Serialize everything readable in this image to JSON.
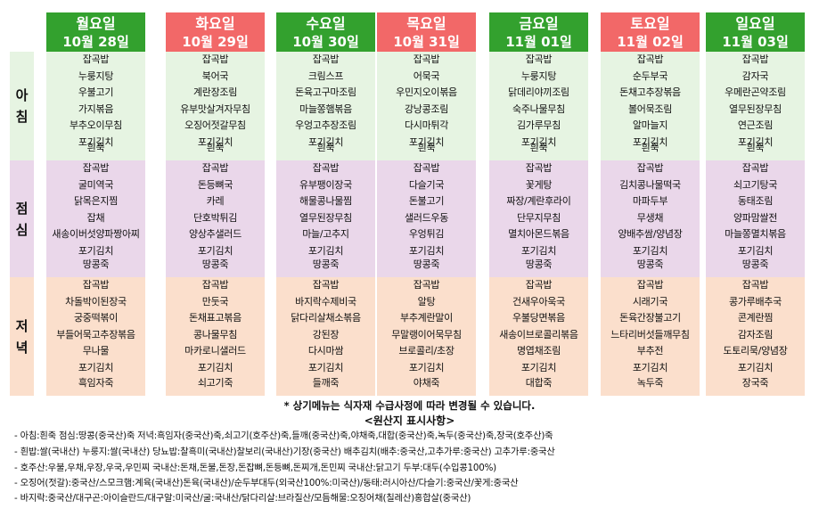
{
  "days": [
    {
      "name": "월요일",
      "date": "10월  28일"
    },
    {
      "name": "화요일",
      "date": "10월  29일"
    },
    {
      "name": "수요일",
      "date": "10월  30일"
    },
    {
      "name": "목요일",
      "date": "10월  31일"
    },
    {
      "name": "금요일",
      "date": "11월  01일"
    },
    {
      "name": "토요일",
      "date": "11월  02일"
    },
    {
      "name": "일요일",
      "date": "11월  03일"
    }
  ],
  "meals": {
    "breakfast": {
      "label": [
        "아",
        "침"
      ],
      "color": "#e6f4e2",
      "menus": [
        [
          "잡곡밥",
          "누룽지탕",
          "우불고기",
          "가지볶음",
          "부추오이무침",
          "포기김치",
          "흰죽"
        ],
        [
          "잡곡밥",
          "북어국",
          "계란장조림",
          "유부맛살겨자무침",
          "오징어젓갈무침",
          "포기김치",
          "흰죽"
        ],
        [
          "잡곡밥",
          "크림스프",
          "돈육고구마조림",
          "마늘쫑햄볶음",
          "우엉고추장조림",
          "포기김치",
          "흰죽"
        ],
        [
          "잡곡밥",
          "어묵국",
          "우민지오이볶음",
          "강낭콩조림",
          "다시마튀각",
          "포기김치",
          "흰죽"
        ],
        [
          "잡곡밥",
          "누룽지탕",
          "닭데리야끼조림",
          "숙주나물무침",
          "김가루무침",
          "포기김치",
          "흰죽"
        ],
        [
          "잡곡밥",
          "순두부국",
          "돈채고추장볶음",
          "볼어묵조림",
          "알마늘지",
          "포기김치",
          "흰죽"
        ],
        [
          "잡곡밥",
          "감자국",
          "우메란곤약조림",
          "열무된장무침",
          "연근조림",
          "포기김치",
          "흰죽"
        ]
      ]
    },
    "lunch": {
      "label": [
        "점",
        "심"
      ],
      "color": "#ead7ea",
      "menus": [
        [
          "잡곡밥",
          "굴미역국",
          "닭목은지찜",
          "잡채",
          "새송이버섯양파짱아찌",
          "포기김치",
          "땅콩죽"
        ],
        [
          "잡곡밥",
          "돈등뼈국",
          "카레",
          "단호박튀김",
          "양상추샐러드",
          "포기김치",
          "땅콩죽"
        ],
        [
          "잡곡밥",
          "유부팽이장국",
          "해물콩나물찜",
          "열무된장무침",
          "마늘/고추지",
          "포기김치",
          "땅콩죽"
        ],
        [
          "잡곡밥",
          "다슬기국",
          "돈불고기",
          "샐러드우동",
          "우엉튀김",
          "포기김치",
          "땅콩죽"
        ],
        [
          "잡곡밥",
          "꽃게탕",
          "짜장/계란후라이",
          "단무지무침",
          "멸치아몬드볶음",
          "포기김치",
          "땅콩죽"
        ],
        [
          "잡곡밥",
          "김치콩나물떡국",
          "마파두부",
          "무생채",
          "양배추쌈/양념장",
          "포기김치",
          "땅콩죽"
        ],
        [
          "잡곡밥",
          "쇠고기탕국",
          "동태조림",
          "양파맘쌀전",
          "마늘쫑멸치볶음",
          "포기김치",
          "땅콩죽"
        ]
      ]
    },
    "dinner": {
      "label": [
        "저",
        "녁"
      ],
      "color": "#fbdfcc",
      "menus": [
        [
          "잡곡밥",
          "차돌박이된장국",
          "궁중떡볶이",
          "부들어묵고추장볶음",
          "무나물",
          "포기김치",
          "흑임자죽"
        ],
        [
          "잡곡밥",
          "만둣국",
          "돈채표고볶음",
          "콩나물무침",
          "마카로니샐러드",
          "포기김치",
          "쇠고기죽"
        ],
        [
          "잡곡밥",
          "바지락수제비국",
          "닭다리살채소볶음",
          "강된장",
          "다시마쌈",
          "포기김치",
          "들깨죽"
        ],
        [
          "잡곡밥",
          "알탕",
          "부추계란말이",
          "무말랭이어묵무침",
          "브로콜리/초장",
          "포기김치",
          "야채죽"
        ],
        [
          "잡곡밥",
          "건새우아욱국",
          "우불당면볶음",
          "새송이브로콜리볶음",
          "명엽채조림",
          "포기김치",
          "대합죽"
        ],
        [
          "잡곡밥",
          "시래기국",
          "돈육간장불고기",
          "느타리버섯들깨무침",
          "부추전",
          "포기김치",
          "녹두죽"
        ],
        [
          "잡곡밥",
          "콩가루배추국",
          "콘계란찜",
          "감자조림",
          "도토리묵/양념장",
          "포기김치",
          "장국죽"
        ]
      ]
    }
  },
  "notice": "* 상기메뉴는 식자재 수급사정에 따라 변경될 수 있습니다.",
  "origin_title": "<원산지 표시사항>",
  "origin_lines": [
    "- 아침:흰죽  점심:땅콩(중국산)죽  저녁:흑임자(중국산)죽,쇠고기(호주산)죽,들깨(중국산)죽,야채죽,대합(중국산)죽,녹두(중국산)죽,장국(호주산)죽",
    "- 흰밥:쌀(국내산)  누룽지:쌀(국내산)  당뇨밥:찰흑미(국내산)찰보리(국내산)기장(중국산)  배추김치(배추:중국산,고추가루:중국산)  고추가루:중국산",
    "- 호주산:우불,우채,우장,우국,우민찌     국내산:돈채,돈불,돈장,돈잡뼈,돈등뼈,돈찌개,돈민찌     국내산:닭고기     두부:대두(수입콩100%)",
    "- 오징어(젓갈):중국산/스모크햄:계육(국내산)돈육(국내산)/순두부대두(외국산100%:미국산)/동태:러시아산/다슬기:중국산/꽃게:중국산",
    "- 바지락:중국산/대구곤:아이슬란드/대구알:미국산/굴:국내산/닭다리살:브라질산/모듬해물:오징어채(칠레산)홍합살(중국산)"
  ]
}
